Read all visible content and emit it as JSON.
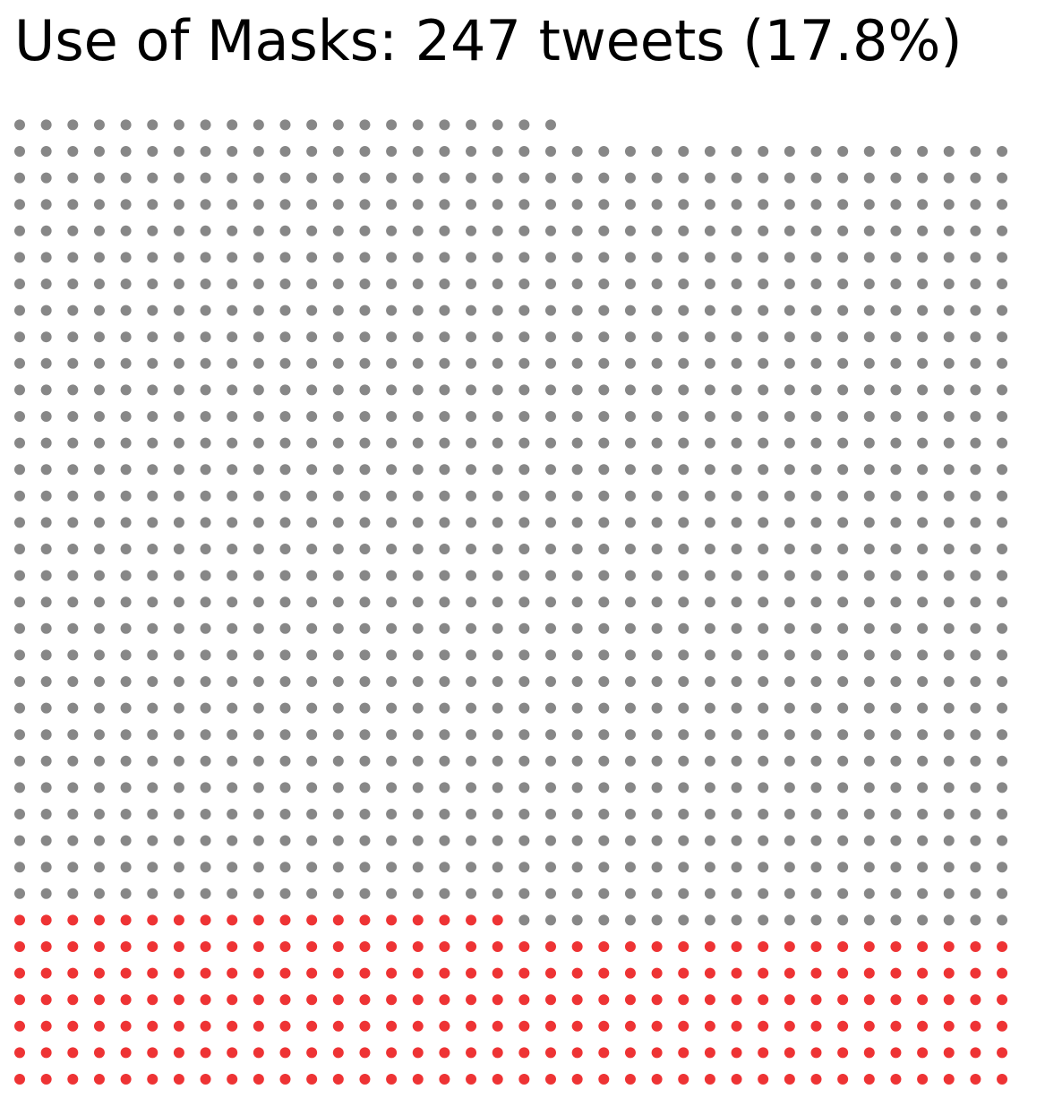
{
  "chart_data": {
    "type": "waffle",
    "title": "Use of Masks: 247 tweets (17.8%)",
    "total_count": 1389,
    "highlight_count": 247,
    "highlight_share_percent": 17.8,
    "columns": 38,
    "fill_order": "bottom-up, left-to-right within each row",
    "colors": {
      "highlight": "#ee3334",
      "rest": "#878787",
      "background": "#ffffff"
    }
  }
}
